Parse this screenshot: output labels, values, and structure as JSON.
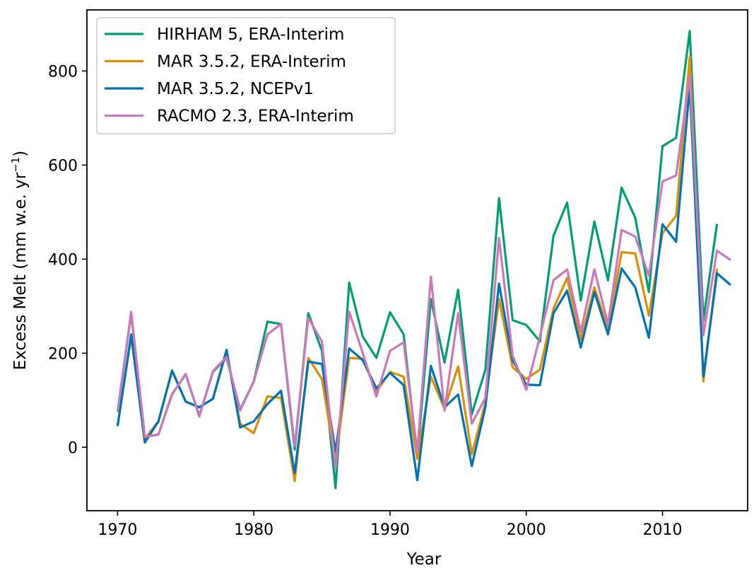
{
  "chart_data": {
    "type": "line",
    "xlabel": "Year",
    "ylabel": "Excess Melt (mm w.e. yr",
    "ylabel_exponent": "−1",
    "ylabel_close": ")",
    "xlim": [
      1967.75,
      2016.25
    ],
    "ylim": [
      -135,
      930
    ],
    "xticks": [
      1970,
      1980,
      1990,
      2000,
      2010
    ],
    "yticks": [
      0,
      200,
      400,
      600,
      800
    ],
    "grid": false,
    "legend_position": "top-left",
    "x": [
      1970,
      1971,
      1972,
      1973,
      1974,
      1975,
      1976,
      1977,
      1978,
      1979,
      1980,
      1981,
      1982,
      1983,
      1984,
      1985,
      1986,
      1987,
      1988,
      1989,
      1990,
      1991,
      1992,
      1993,
      1994,
      1995,
      1996,
      1997,
      1998,
      1999,
      2000,
      2001,
      2002,
      2003,
      2004,
      2005,
      2006,
      2007,
      2008,
      2009,
      2010,
      2011,
      2012,
      2013,
      2014,
      2015
    ],
    "series": [
      {
        "name": "HIRHAM 5, ERA-Interim",
        "color": "#029e73",
        "values": [
          75,
          285,
          22,
          27,
          113,
          155,
          67,
          160,
          190,
          80,
          140,
          267,
          262,
          -5,
          285,
          205,
          -87,
          350,
          235,
          190,
          287,
          240,
          -20,
          315,
          180,
          335,
          70,
          165,
          530,
          270,
          260,
          225,
          450,
          520,
          312,
          480,
          355,
          552,
          488,
          330,
          640,
          658,
          885,
          270,
          475,
          null
        ]
      },
      {
        "name": "MAR 3.5.2, ERA-Interim",
        "color": "#de8f05",
        "values": [
          45,
          235,
          18,
          55,
          163,
          97,
          85,
          103,
          205,
          50,
          30,
          108,
          105,
          -72,
          190,
          145,
          -30,
          190,
          188,
          118,
          160,
          150,
          -25,
          150,
          82,
          172,
          -15,
          95,
          315,
          170,
          145,
          165,
          295,
          360,
          228,
          340,
          252,
          415,
          412,
          280,
          455,
          492,
          830,
          140,
          380,
          null
        ]
      },
      {
        "name": "MAR 3.5.2, NCEPv1",
        "color": "#0173b2",
        "values": [
          45,
          240,
          10,
          55,
          163,
          97,
          85,
          103,
          207,
          42,
          55,
          92,
          120,
          -55,
          182,
          177,
          -10,
          210,
          185,
          125,
          158,
          132,
          -70,
          173,
          85,
          112,
          -40,
          85,
          348,
          185,
          133,
          132,
          285,
          333,
          212,
          330,
          240,
          380,
          340,
          233,
          474,
          437,
          768,
          150,
          370,
          345
        ]
      },
      {
        "name": "RACMO 2.3, ERA-Interim",
        "color": "#cc78bc",
        "values": [
          75,
          288,
          22,
          27,
          112,
          156,
          65,
          162,
          192,
          78,
          140,
          240,
          262,
          2,
          275,
          225,
          -45,
          288,
          200,
          108,
          205,
          223,
          -10,
          363,
          78,
          285,
          50,
          105,
          445,
          195,
          122,
          235,
          355,
          378,
          245,
          378,
          262,
          462,
          448,
          365,
          565,
          578,
          790,
          238,
          418,
          398
        ]
      }
    ]
  }
}
